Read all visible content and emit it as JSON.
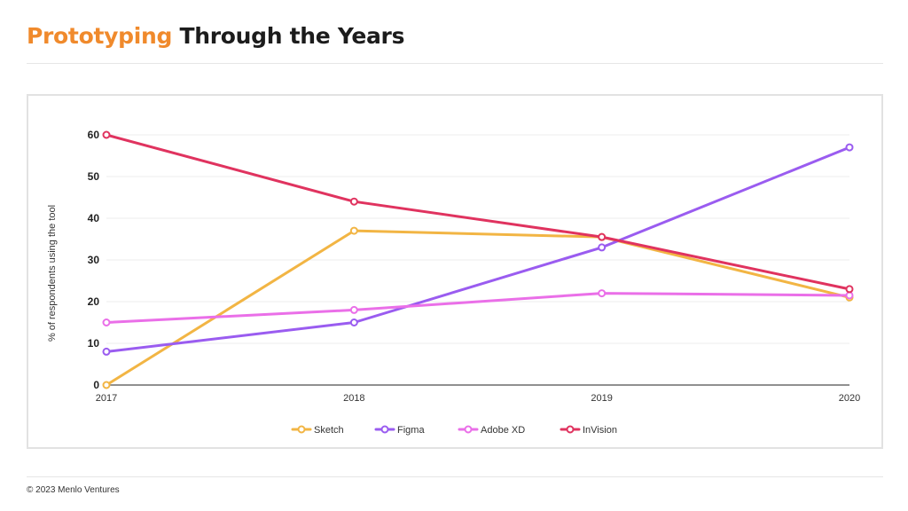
{
  "header": {
    "title_accent": "Prototyping",
    "title_rest": "Through the Years"
  },
  "footer": {
    "copyright": "© 2023 Menlo Ventures"
  },
  "colors": {
    "accent": "#f08a2c",
    "sketch": "#f2b544",
    "figma": "#9a5cf0",
    "adobe_xd": "#ea6fe8",
    "invision": "#e0335f"
  },
  "chart_data": {
    "type": "line",
    "title": "",
    "xlabel": "",
    "ylabel": "% of respondents using the tool",
    "x": [
      "2017",
      "2018",
      "2019",
      "2020"
    ],
    "ylim": [
      0,
      60
    ],
    "yticks": [
      0,
      10,
      20,
      30,
      40,
      50,
      60
    ],
    "grid": true,
    "legend_position": "bottom",
    "series": [
      {
        "name": "Sketch",
        "color": "#f2b544",
        "values": [
          0,
          37,
          35.5,
          21
        ]
      },
      {
        "name": "Figma",
        "color": "#9a5cf0",
        "values": [
          8,
          15,
          33,
          57
        ]
      },
      {
        "name": "Adobe XD",
        "color": "#ea6fe8",
        "values": [
          15,
          18,
          22,
          21.5
        ]
      },
      {
        "name": "InVision",
        "color": "#e0335f",
        "values": [
          60,
          44,
          35.5,
          23
        ]
      }
    ]
  }
}
